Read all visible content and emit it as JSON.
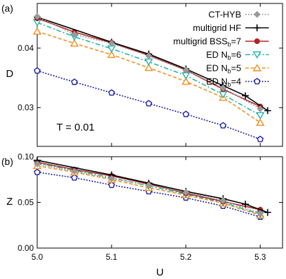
{
  "chart_data": [
    {
      "type": "line",
      "panel_label": "(a)",
      "ylabel": "D",
      "xlim": [
        5.0,
        5.33
      ],
      "ylim": [
        0.0235,
        0.0475
      ],
      "xticks": [
        "5.0",
        "5.1",
        "5.2",
        "5.3"
      ],
      "yticks": [
        0.03,
        0.04
      ],
      "ytick_labels": [
        "0.03",
        "0.04"
      ],
      "annotation": "T = 0.01",
      "legend_position": "top-right",
      "grid": false,
      "series": [
        {
          "name": "CT-HYB",
          "color": "#999999",
          "marker": "diamond",
          "dash": "2,2",
          "x": [
            5.0,
            5.05,
            5.1,
            5.15,
            5.2,
            5.25,
            5.3
          ],
          "y": [
            0.0453,
            0.0423,
            0.0408,
            0.0387,
            0.0363,
            0.0333,
            0.0298
          ]
        },
        {
          "name": "multigrid HF",
          "color": "#000000",
          "marker": "plus",
          "dash": "",
          "x": [
            5.0,
            5.1,
            5.15,
            5.2,
            5.25,
            5.28,
            5.31
          ],
          "y": [
            0.0452,
            0.041,
            0.039,
            0.0365,
            0.0337,
            0.032,
            0.0295
          ]
        },
        {
          "name": "multigrid BSS",
          "name_sub": "b",
          "name_suffix": "=7",
          "color": "#b22222",
          "marker": "circle",
          "dash": "",
          "x": [
            5.0,
            5.05,
            5.1,
            5.15,
            5.2,
            5.25,
            5.3
          ],
          "y": [
            0.045,
            0.0427,
            0.0409,
            0.0388,
            0.0363,
            0.0331,
            0.0302
          ]
        },
        {
          "name": "ED N",
          "name_sub": "b",
          "name_suffix": "=6",
          "color": "#20b2aa",
          "marker": "triangle-down",
          "dash": "7,3,2,3",
          "x": [
            5.0,
            5.05,
            5.1,
            5.15,
            5.2,
            5.25,
            5.3
          ],
          "y": [
            0.0443,
            0.0419,
            0.0399,
            0.0377,
            0.0354,
            0.0322,
            0.0287
          ]
        },
        {
          "name": "ED N",
          "name_sub": "b",
          "name_suffix": "=5",
          "color": "#f28e1c",
          "marker": "triangle-up",
          "dash": "5,3",
          "x": [
            5.0,
            5.05,
            5.1,
            5.15,
            5.2,
            5.25,
            5.3
          ],
          "y": [
            0.0428,
            0.0408,
            0.0389,
            0.0367,
            0.0344,
            0.0317,
            0.0275
          ]
        },
        {
          "name": "ED N",
          "name_sub": "b",
          "name_suffix": "=4",
          "color": "#1a1aa8",
          "marker": "pentagon",
          "dash": "2,2",
          "x": [
            5.0,
            5.05,
            5.1,
            5.15,
            5.2,
            5.25,
            5.3
          ],
          "y": [
            0.0362,
            0.0343,
            0.0325,
            0.0307,
            0.0289,
            0.027,
            0.0247
          ]
        }
      ]
    },
    {
      "type": "line",
      "panel_label": "(b)",
      "ylabel": "Z",
      "xlabel": "U",
      "xlim": [
        5.0,
        5.33
      ],
      "ylim": [
        0.0,
        0.1
      ],
      "xticks": [
        "5.0",
        "5.1",
        "5.2",
        "5.3"
      ],
      "yticks": [
        0.0,
        0.05,
        0.1
      ],
      "ytick_labels": [
        "0.00",
        "0.05",
        "0.10"
      ],
      "grid": false,
      "series": [
        {
          "name": "CT-HYB",
          "color": "#999999",
          "marker": "diamond",
          "dash": "2,2",
          "x": [
            5.0,
            5.05,
            5.1,
            5.15,
            5.2,
            5.25,
            5.3
          ],
          "y": [
            0.092,
            0.084,
            0.076,
            0.069,
            0.061,
            0.052,
            0.038
          ]
        },
        {
          "name": "multigrid HF",
          "color": "#000000",
          "marker": "plus",
          "dash": "",
          "x": [
            5.0,
            5.1,
            5.15,
            5.2,
            5.25,
            5.28,
            5.31
          ],
          "y": [
            0.096,
            0.08,
            0.071,
            0.062,
            0.054,
            0.048,
            0.039
          ]
        },
        {
          "name": "multigrid BSS",
          "color": "#b22222",
          "marker": "circle",
          "dash": "",
          "x": [
            5.0,
            5.05,
            5.1,
            5.15,
            5.2,
            5.25,
            5.3
          ],
          "y": [
            0.094,
            0.086,
            0.079,
            0.07,
            0.06,
            0.051,
            0.042
          ]
        },
        {
          "name": "ED N",
          "color": "#20b2aa",
          "marker": "triangle-down",
          "dash": "7,3,2,3",
          "x": [
            5.0,
            5.05,
            5.1,
            5.15,
            5.2,
            5.25,
            5.3
          ],
          "y": [
            0.093,
            0.085,
            0.077,
            0.068,
            0.059,
            0.05,
            0.037
          ]
        },
        {
          "name": "ED N",
          "color": "#f28e1c",
          "marker": "triangle-up",
          "dash": "5,3",
          "x": [
            5.0,
            5.05,
            5.1,
            5.15,
            5.2,
            5.25,
            5.3
          ],
          "y": [
            0.09,
            0.083,
            0.075,
            0.066,
            0.058,
            0.049,
            0.036
          ]
        },
        {
          "name": "ED N",
          "color": "#1a1aa8",
          "marker": "pentagon",
          "dash": "2,2",
          "x": [
            5.0,
            5.05,
            5.1,
            5.15,
            5.2,
            5.25,
            5.3
          ],
          "y": [
            0.083,
            0.077,
            0.069,
            0.062,
            0.055,
            0.046,
            0.034
          ]
        }
      ]
    }
  ]
}
